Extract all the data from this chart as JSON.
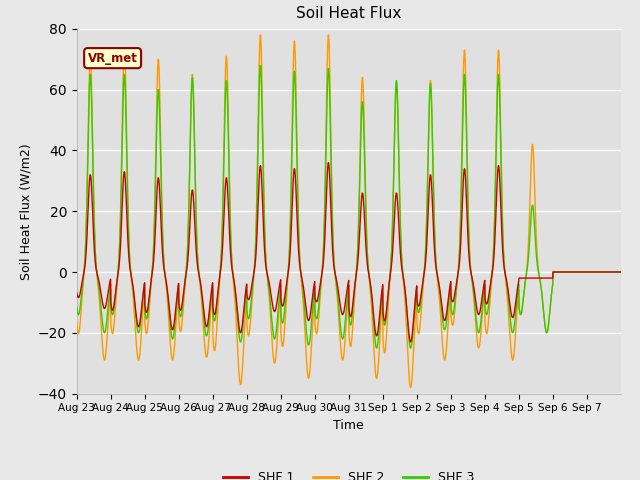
{
  "title": "Soil Heat Flux",
  "xlabel": "Time",
  "ylabel": "Soil Heat Flux (W/m2)",
  "ylim": [
    -40,
    80
  ],
  "yticks": [
    -40,
    -20,
    0,
    20,
    40,
    60,
    80
  ],
  "colors": {
    "SHF 1": "#cc0000",
    "SHF 2": "#ff9900",
    "SHF 3": "#33cc00"
  },
  "bg_color": "#e8e8e8",
  "plot_bg_color": "#e0e0e0",
  "annotation_text": "VR_met",
  "annotation_bg": "#ffffcc",
  "annotation_border": "#8b0000",
  "x_tick_labels": [
    "Aug 23",
    "Aug 24",
    "Aug 25",
    "Aug 26",
    "Aug 27",
    "Aug 28",
    "Aug 29",
    "Aug 30",
    "Aug 31",
    "Sep 1",
    "Sep 2",
    "Sep 3",
    "Sep 4",
    "Sep 5",
    "Sep 6",
    "Sep 7"
  ],
  "n_days": 16,
  "shf1_day_max": [
    32,
    33,
    31,
    27,
    31,
    35,
    34,
    36,
    26,
    26,
    32,
    34,
    35,
    0,
    0,
    0
  ],
  "shf1_day_min": [
    -12,
    -18,
    -19,
    -18,
    -20,
    -13,
    -16,
    -14,
    -21,
    -23,
    -16,
    -14,
    -15,
    0,
    0,
    0
  ],
  "shf2_day_max": [
    70,
    73,
    70,
    65,
    71,
    78,
    76,
    78,
    64,
    62,
    63,
    73,
    73,
    42,
    0,
    0
  ],
  "shf2_day_min": [
    -29,
    -29,
    -29,
    -28,
    -37,
    -30,
    -35,
    -29,
    -35,
    -38,
    -29,
    -25,
    -29,
    -20,
    0,
    0
  ],
  "shf3_day_max": [
    65,
    65,
    60,
    64,
    63,
    68,
    66,
    67,
    56,
    63,
    62,
    65,
    65,
    22,
    0,
    0
  ],
  "shf3_day_min": [
    -20,
    -20,
    -22,
    -21,
    -23,
    -22,
    -24,
    -22,
    -25,
    -25,
    -19,
    -20,
    -20,
    -20,
    0,
    0
  ],
  "linewidth": 1.0
}
